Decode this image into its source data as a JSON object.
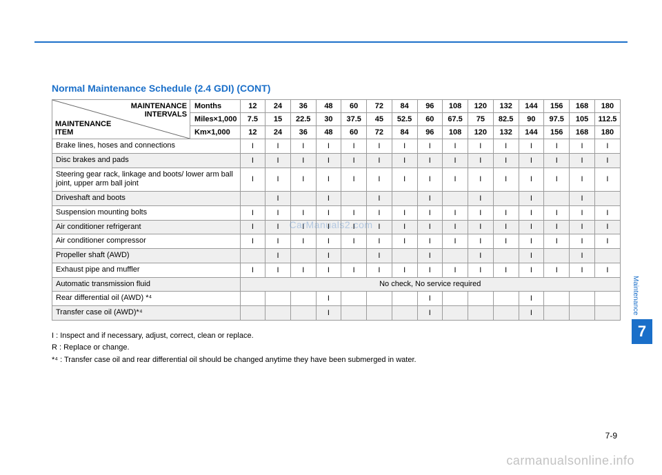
{
  "colors": {
    "accent": "#1a6fc9",
    "rule": "#1a6fc9",
    "header_bg": "#ffffff",
    "row_alt_bg": "#efefef",
    "border": "#9a9a9a",
    "text": "#222222",
    "watermark": "rgba(70,130,200,0.35)",
    "footer_wm": "rgba(120,120,120,0.45)"
  },
  "title": "Normal Maintenance Schedule (2.4 GDI) (CONT)",
  "header_diag": {
    "top_right": "MAINTENANCE\nINTERVALS",
    "bottom_left": "MAINTENANCE\nITEM"
  },
  "interval_rows": [
    {
      "label": "Months",
      "values": [
        "12",
        "24",
        "36",
        "48",
        "60",
        "72",
        "84",
        "96",
        "108",
        "120",
        "132",
        "144",
        "156",
        "168",
        "180"
      ]
    },
    {
      "label": "Miles×1,000",
      "values": [
        "7.5",
        "15",
        "22.5",
        "30",
        "37.5",
        "45",
        "52.5",
        "60",
        "67.5",
        "75",
        "82.5",
        "90",
        "97.5",
        "105",
        "112.5"
      ]
    },
    {
      "label": "Km×1,000",
      "values": [
        "12",
        "24",
        "36",
        "48",
        "60",
        "72",
        "84",
        "96",
        "108",
        "120",
        "132",
        "144",
        "156",
        "168",
        "180"
      ]
    }
  ],
  "items": [
    {
      "label": "Brake lines, hoses and connections",
      "cells": [
        "I",
        "I",
        "I",
        "I",
        "I",
        "I",
        "I",
        "I",
        "I",
        "I",
        "I",
        "I",
        "I",
        "I",
        "I"
      ]
    },
    {
      "label": "Disc brakes and pads",
      "cells": [
        "I",
        "I",
        "I",
        "I",
        "I",
        "I",
        "I",
        "I",
        "I",
        "I",
        "I",
        "I",
        "I",
        "I",
        "I"
      ]
    },
    {
      "label": "Steering gear rack, linkage and boots/ lower arm ball joint, upper arm ball joint",
      "cells": [
        "I",
        "I",
        "I",
        "I",
        "I",
        "I",
        "I",
        "I",
        "I",
        "I",
        "I",
        "I",
        "I",
        "I",
        "I"
      ]
    },
    {
      "label": "Driveshaft and boots",
      "cells": [
        "",
        "I",
        "",
        "I",
        "",
        "I",
        "",
        "I",
        "",
        "I",
        "",
        "I",
        "",
        "I",
        ""
      ]
    },
    {
      "label": "Suspension mounting bolts",
      "cells": [
        "I",
        "I",
        "I",
        "I",
        "I",
        "I",
        "I",
        "I",
        "I",
        "I",
        "I",
        "I",
        "I",
        "I",
        "I"
      ]
    },
    {
      "label": "Air conditioner refrigerant",
      "cells": [
        "I",
        "I",
        "I",
        "I",
        "I",
        "I",
        "I",
        "I",
        "I",
        "I",
        "I",
        "I",
        "I",
        "I",
        "I"
      ]
    },
    {
      "label": "Air conditioner compressor",
      "cells": [
        "I",
        "I",
        "I",
        "I",
        "I",
        "I",
        "I",
        "I",
        "I",
        "I",
        "I",
        "I",
        "I",
        "I",
        "I"
      ]
    },
    {
      "label": "Propeller shaft (AWD)",
      "cells": [
        "",
        "I",
        "",
        "I",
        "",
        "I",
        "",
        "I",
        "",
        "I",
        "",
        "I",
        "",
        "I",
        ""
      ]
    },
    {
      "label": "Exhaust pipe and muffler",
      "cells": [
        "I",
        "I",
        "I",
        "I",
        "I",
        "I",
        "I",
        "I",
        "I",
        "I",
        "I",
        "I",
        "I",
        "I",
        "I"
      ]
    },
    {
      "label": "Automatic transmission fluid",
      "span_note": "No check, No service required"
    },
    {
      "label": "Rear differential oil (AWD) *⁴",
      "cells": [
        "",
        "",
        "",
        "I",
        "",
        "",
        "",
        "I",
        "",
        "",
        "",
        "I",
        "",
        "",
        ""
      ]
    },
    {
      "label": "Transfer case oil (AWD)*⁴",
      "cells": [
        "",
        "",
        "",
        "I",
        "",
        "",
        "",
        "I",
        "",
        "",
        "",
        "I",
        "",
        "",
        ""
      ]
    }
  ],
  "legend": [
    "I   : Inspect and if necessary, adjust, correct, clean or replace.",
    "R : Replace or change.",
    "*⁴ : Transfer case oil and rear differential oil should be changed anytime they have been submerged in water."
  ],
  "watermark_center": "CarManuals2.com",
  "watermark_footer": "carmanualsonline.info",
  "side": {
    "label": "Maintenance",
    "chapter": "7"
  },
  "page_number": "7-9"
}
